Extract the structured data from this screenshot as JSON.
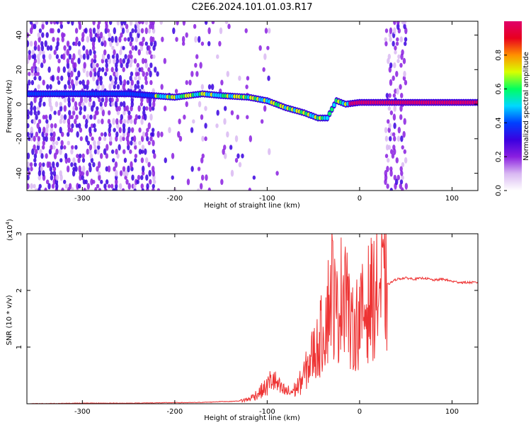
{
  "title": "C2E6.2024.101.01.03.R17",
  "chart_data": [
    {
      "type": "heatmap",
      "xlabel": "Height of straight line (km)",
      "ylabel": "Frequency (Hz)",
      "xlim": [
        -360,
        128
      ],
      "ylim": [
        -50,
        48
      ],
      "xticks": [
        -300,
        -200,
        -100,
        0,
        100
      ],
      "yticks": [
        -40,
        -20,
        0,
        20,
        40
      ],
      "colorbar": {
        "label": "Normalized spectral amplitude",
        "range": [
          0,
          1
        ],
        "ticks": [
          "0.0",
          "0.2",
          "0.4",
          "0.6",
          "0.8"
        ],
        "colormap": [
          "#ffffff",
          "#d9b8f2",
          "#8a1fe0",
          "#3a00e0",
          "#0040ff",
          "#00d8ff",
          "#00ff60",
          "#d8ff00",
          "#ff9000",
          "#e8001e",
          "#e0006a"
        ]
      },
      "ridge": {
        "x": [
          -360,
          -300,
          -250,
          -200,
          -170,
          -150,
          -120,
          -100,
          -80,
          -60,
          -45,
          -35,
          -25,
          -15,
          0,
          30,
          60,
          128
        ],
        "y": [
          6,
          6,
          6,
          4,
          6,
          5,
          4,
          2,
          -2,
          -5,
          -8,
          -8,
          2,
          0,
          1,
          1,
          1,
          1
        ]
      }
    },
    {
      "type": "line",
      "xlabel": "Height of straight line (km)",
      "ylabel": "SNR (10 * v/v)",
      "y_multiplier": "(x10",
      "y_multiplier_exp": "4",
      "y_multiplier_close": ")",
      "xlim": [
        -360,
        128
      ],
      "ylim": [
        0,
        3
      ],
      "xticks": [
        -300,
        -200,
        -100,
        0,
        100
      ],
      "yticks": [
        1,
        2,
        3
      ],
      "series": [
        {
          "color": "#ee3333",
          "x": [
            -360,
            -300,
            -250,
            -200,
            -180,
            -160,
            -150,
            -140,
            -130,
            -120,
            -110,
            -100,
            -95,
            -90,
            -85,
            -80,
            -75,
            -70,
            -65,
            -60,
            -55,
            -50,
            -45,
            -40,
            -35,
            -30,
            -25,
            -20,
            -15,
            -10,
            -5,
            0,
            5,
            10,
            20,
            30,
            40,
            50,
            60,
            70,
            80,
            90,
            100,
            110,
            128
          ],
          "y": [
            0,
            0.01,
            0.01,
            0.02,
            0.02,
            0.03,
            0.04,
            0.04,
            0.05,
            0.08,
            0.18,
            0.3,
            0.45,
            0.35,
            0.25,
            0.22,
            0.2,
            0.25,
            0.35,
            0.5,
            0.7,
            0.9,
            1.0,
            1.3,
            1.6,
            2.1,
            1.5,
            1.9,
            2.4,
            1.2,
            1.4,
            1.5,
            1.6,
            1.8,
            1.98,
            2.1,
            2.2,
            2.22,
            2.2,
            2.22,
            2.18,
            2.2,
            2.16,
            2.14,
            2.14
          ]
        }
      ]
    }
  ]
}
